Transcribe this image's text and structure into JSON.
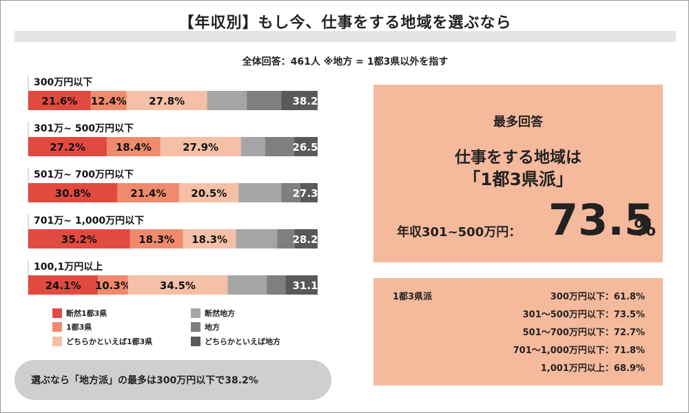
{
  "header": {
    "title": "【年収別】もし今、仕事をする地域を選ぶなら",
    "subtitle": "全体回答：461人 ※地方 = 1都3県以外を指す"
  },
  "colors": {
    "absolutely_capital": "#e14a3f",
    "capital": "#ef8a6c",
    "rather_capital": "#f5c0a6",
    "absolutely_rural": "#a5a5a5",
    "rural": "#7f7f7f",
    "rather_rural": "#595959",
    "panel": "#f5b99c",
    "pill": "#cfcfcf"
  },
  "chart_data": {
    "type": "bar",
    "orientation": "horizontal",
    "stacked": true,
    "percent": true,
    "categories": [
      "300万円以下",
      "301万~ 500万円以下",
      "501万~ 700万円以下",
      "701万~ 1,000万円以下",
      "100,1万円以上"
    ],
    "series": [
      {
        "name": "断然1都3県",
        "values": [
          21.6,
          27.2,
          30.8,
          35.2,
          24.1
        ],
        "labels": [
          "21.6%",
          "27.2%",
          "30.8%",
          "35.2%",
          "24.1%"
        ]
      },
      {
        "name": "1都3県",
        "values": [
          12.4,
          18.4,
          21.4,
          18.3,
          10.3
        ],
        "labels": [
          "12.4%",
          "18.4%",
          "21.4%",
          "18.3%",
          "10.3%"
        ]
      },
      {
        "name": "どちらかといえば1都3県",
        "values": [
          27.8,
          27.9,
          20.5,
          18.3,
          34.5
        ],
        "labels": [
          "27.8%",
          "27.9%",
          "20.5%",
          "18.3%",
          "34.5%"
        ]
      },
      {
        "name": "断然地方",
        "values": [
          13.7,
          8.4,
          14.8,
          14.2,
          13.5
        ],
        "labels": [
          "",
          "",
          "",
          "",
          ""
        ]
      },
      {
        "name": "地方",
        "values": [
          12.0,
          10.0,
          6.5,
          6.0,
          6.5
        ],
        "labels": [
          "",
          "",
          "",
          "",
          ""
        ]
      },
      {
        "name": "どちらかといえば地方",
        "values": [
          12.5,
          8.1,
          6.0,
          8.0,
          11.1
        ],
        "labels": [
          "",
          "",
          "",
          "",
          ""
        ]
      }
    ],
    "rural_total_labels": [
      "38.2",
      "26.5",
      "27.3",
      "28.2",
      "31.1"
    ],
    "xlim": [
      0,
      100
    ],
    "legend": [
      {
        "name": "断然1都3県",
        "color": "#e14a3f"
      },
      {
        "name": "1都3県",
        "color": "#ef8a6c"
      },
      {
        "name": "どちらかといえば1都3県",
        "color": "#f5c0a6"
      },
      {
        "name": "断然地方",
        "color": "#a5a5a5"
      },
      {
        "name": "地方",
        "color": "#7f7f7f"
      },
      {
        "name": "どちらかといえば地方",
        "color": "#595959"
      }
    ]
  },
  "callout": {
    "text": "選ぶなら「地方派」の最多は300万円以下で38.2%"
  },
  "panel_top": {
    "label": "最多回答",
    "line1": "仕事をする地域は",
    "line2": "「1都3県派」",
    "income_label": "年収301~500万円：",
    "big_value": "73.5",
    "big_unit": "%"
  },
  "panel_bottom": {
    "label": "1都3県派",
    "rows": [
      {
        "label": "300万円以下：",
        "value": "61.8%"
      },
      {
        "label": "301～500万円以下：",
        "value": "73.5%"
      },
      {
        "label": "501～700万円以下：",
        "value": "72.7%"
      },
      {
        "label": "701～1,000万円以下：",
        "value": "71.8%"
      },
      {
        "label": "1,001万円以上：",
        "value": "68.9%"
      }
    ]
  }
}
